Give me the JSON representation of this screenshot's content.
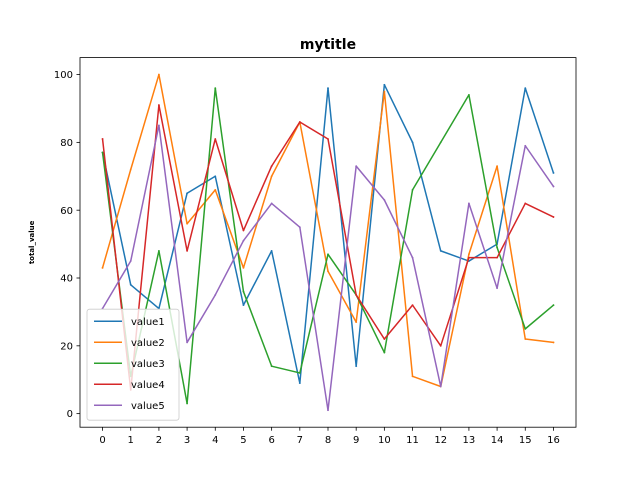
{
  "chart_data": {
    "type": "line",
    "title": "mytitle",
    "xlabel": "",
    "ylabel": "total_value",
    "x": [
      0,
      1,
      2,
      3,
      4,
      5,
      6,
      7,
      8,
      9,
      10,
      11,
      12,
      13,
      14,
      15,
      16
    ],
    "xlim": [
      -0.8,
      16.8
    ],
    "ylim": [
      -4,
      105
    ],
    "xticks": [
      "0",
      "1",
      "2",
      "3",
      "4",
      "5",
      "6",
      "7",
      "8",
      "9",
      "10",
      "11",
      "12",
      "13",
      "14",
      "15",
      "16"
    ],
    "yticks": [
      "0",
      "20",
      "40",
      "60",
      "80",
      "100"
    ],
    "grid": false,
    "legend_position": "lower-left",
    "series": [
      {
        "name": "value1",
        "color": "#1f77b4",
        "values": [
          77,
          38,
          31,
          65,
          70,
          32,
          48,
          9,
          96,
          14,
          97,
          80,
          48,
          45,
          50,
          96,
          71
        ]
      },
      {
        "name": "value2",
        "color": "#ff7f0e",
        "values": [
          43,
          72,
          100,
          56,
          66,
          43,
          70,
          86,
          42,
          27,
          95,
          11,
          8,
          47,
          73,
          22,
          21
        ]
      },
      {
        "name": "value3",
        "color": "#2ca02c",
        "values": [
          77,
          11,
          48,
          3,
          96,
          36,
          14,
          12,
          47,
          35,
          18,
          66,
          80,
          94,
          49,
          25,
          32
        ]
      },
      {
        "name": "value4",
        "color": "#d62728",
        "values": [
          81,
          7,
          91,
          48,
          81,
          54,
          73,
          86,
          81,
          35,
          22,
          32,
          20,
          46,
          46,
          62,
          58
        ]
      },
      {
        "name": "value5",
        "color": "#9467bd",
        "values": [
          31,
          45,
          85,
          21,
          35,
          51,
          62,
          55,
          1,
          73,
          63,
          46,
          8,
          62,
          37,
          79,
          67
        ]
      }
    ]
  }
}
